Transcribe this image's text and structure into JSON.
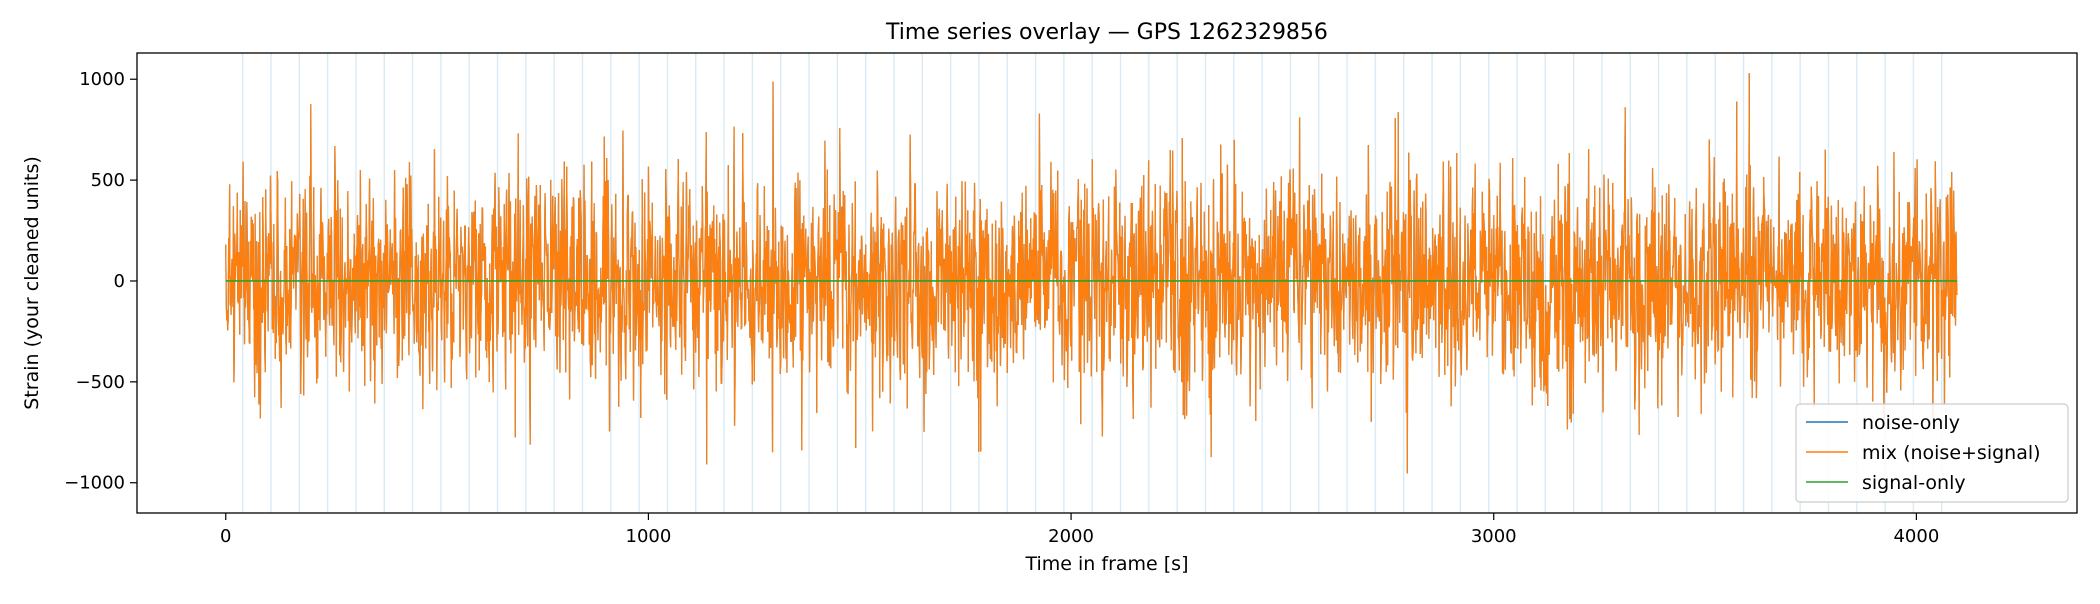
{
  "chart_data": {
    "type": "line",
    "title": "Time series overlay — GPS 1262329856",
    "xlabel": "Time in frame [s]",
    "ylabel": "Strain (your cleaned units)",
    "xlim": [
      -210,
      4380
    ],
    "ylim": [
      -1150,
      1130
    ],
    "xticks": [
      0,
      1000,
      2000,
      3000,
      4000
    ],
    "xtick_labels": [
      "0",
      "1000",
      "2000",
      "3000",
      "4000"
    ],
    "yticks": [
      1000,
      500,
      0,
      -500,
      -1000
    ],
    "ytick_labels": [
      "1000",
      "500",
      "0",
      "−500",
      "−1000"
    ],
    "grid": false,
    "legend_position": "lower-right",
    "x_range": [
      0,
      4096
    ],
    "series": [
      {
        "name": "noise-only",
        "color": "#1f77b4",
        "description_range": [
          -1040,
          1030
        ]
      },
      {
        "name": "mix (noise+signal)",
        "color": "#ff7f0e",
        "typical_amplitude": 450,
        "min": -1040,
        "max": 1030
      },
      {
        "name": "signal-only",
        "color": "#2ca02c",
        "values_constant": 0
      }
    ],
    "segment_markers_every_s": 67,
    "segment_marker_color": "#d9eaf5"
  }
}
